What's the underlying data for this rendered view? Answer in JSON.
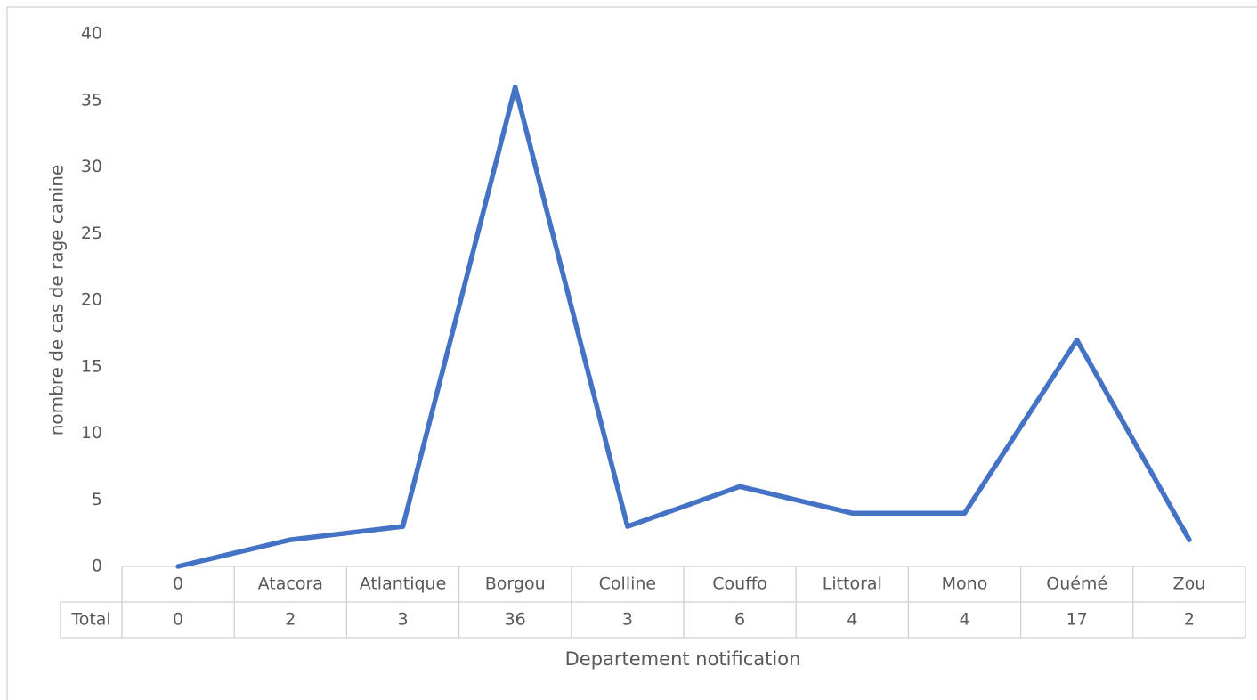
{
  "chart_data": {
    "type": "line",
    "y_label": "nombre de cas de rage canine",
    "x_label": "Departement notification",
    "categories": [
      "0",
      "Atacora",
      "Atlantique",
      "Borgou",
      "Colline",
      "Couffo",
      "Littoral",
      "Mono",
      "Ouémé",
      "Zou"
    ],
    "series": [
      {
        "name": "Total",
        "color": "#4472c4",
        "values": [
          0,
          2,
          3,
          36,
          3,
          6,
          4,
          4,
          17,
          2
        ]
      }
    ],
    "ylim": [
      0,
      40
    ],
    "yticks": [
      0,
      5,
      10,
      15,
      20,
      25,
      30,
      35,
      40
    ],
    "grid": false
  }
}
